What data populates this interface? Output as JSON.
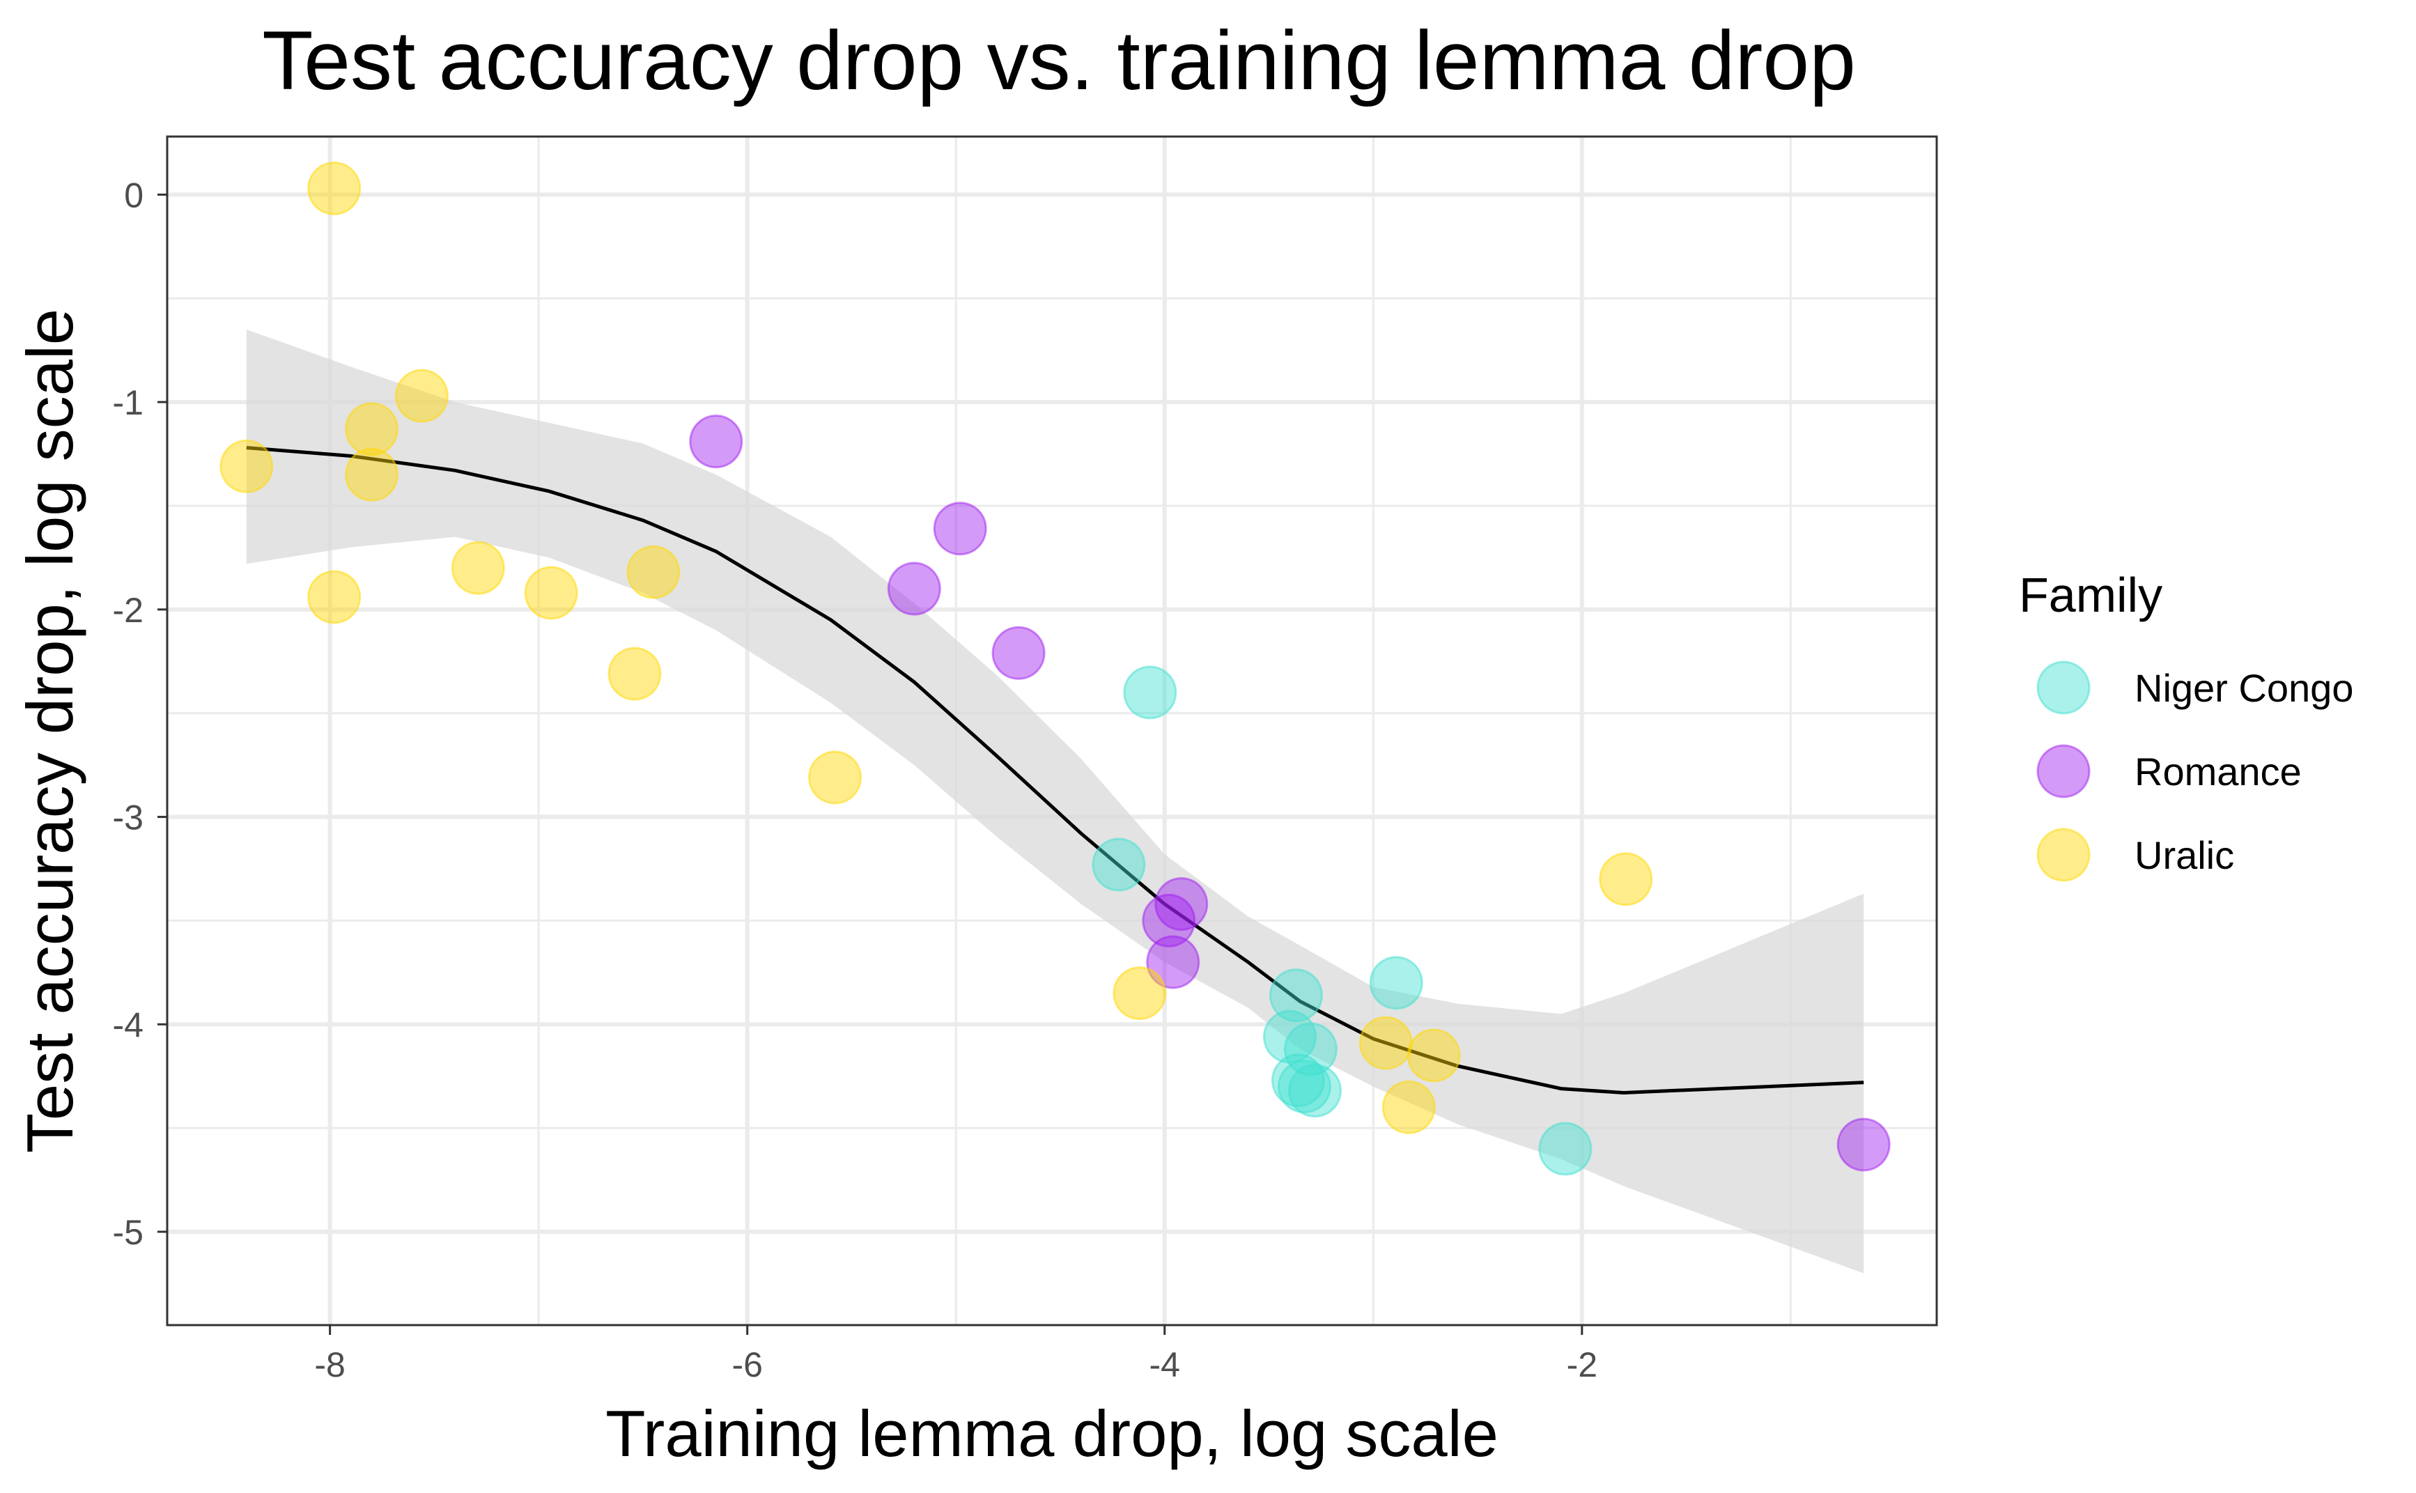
{
  "chart_data": {
    "type": "scatter",
    "title": "Test accuracy drop vs. training lemma drop",
    "xlabel": "Training lemma drop, log scale",
    "ylabel": "Test accuracy drop, log scale",
    "xlim": [
      -8.78,
      -0.3
    ],
    "ylim": [
      -5.45,
      0.28
    ],
    "x_ticks": [
      -8,
      -6,
      -4,
      -2
    ],
    "x_minor_ticks": [
      -7,
      -5,
      -3,
      -1
    ],
    "y_ticks": [
      0,
      -1,
      -2,
      -3,
      -4,
      -5
    ],
    "y_minor_ticks": [
      -0.5,
      -1.5,
      -2.5,
      -3.5,
      -4.5
    ],
    "grid": true,
    "legend": {
      "title": "Family",
      "position": "right",
      "entries": [
        {
          "name": "Niger Congo",
          "color": "#40E0D0"
        },
        {
          "name": "Romance",
          "color": "#A020F0"
        },
        {
          "name": "Uralic",
          "color": "#FFD700"
        }
      ]
    },
    "point_alpha": 0.45,
    "series": [
      {
        "name": "Niger Congo",
        "color": "#40E0D0",
        "points": [
          {
            "x": -4.07,
            "y": -2.4
          },
          {
            "x": -4.22,
            "y": -3.23
          },
          {
            "x": -3.37,
            "y": -3.86
          },
          {
            "x": -2.89,
            "y": -3.8
          },
          {
            "x": -3.4,
            "y": -4.06
          },
          {
            "x": -3.3,
            "y": -4.12
          },
          {
            "x": -3.36,
            "y": -4.27
          },
          {
            "x": -3.33,
            "y": -4.3
          },
          {
            "x": -3.28,
            "y": -4.32
          },
          {
            "x": -2.08,
            "y": -4.6
          }
        ]
      },
      {
        "name": "Romance",
        "color": "#A020F0",
        "points": [
          {
            "x": -6.15,
            "y": -1.19
          },
          {
            "x": -4.98,
            "y": -1.61
          },
          {
            "x": -5.2,
            "y": -1.9
          },
          {
            "x": -4.7,
            "y": -2.21
          },
          {
            "x": -3.92,
            "y": -3.42
          },
          {
            "x": -3.98,
            "y": -3.5
          },
          {
            "x": -3.96,
            "y": -3.7
          },
          {
            "x": -0.65,
            "y": -4.58
          }
        ]
      },
      {
        "name": "Uralic",
        "color": "#FFD700",
        "points": [
          {
            "x": -7.98,
            "y": 0.03
          },
          {
            "x": -7.56,
            "y": -0.97
          },
          {
            "x": -7.8,
            "y": -1.13
          },
          {
            "x": -8.4,
            "y": -1.31
          },
          {
            "x": -7.8,
            "y": -1.35
          },
          {
            "x": -7.98,
            "y": -1.94
          },
          {
            "x": -7.29,
            "y": -1.8
          },
          {
            "x": -6.94,
            "y": -1.92
          },
          {
            "x": -6.45,
            "y": -1.82
          },
          {
            "x": -6.54,
            "y": -2.31
          },
          {
            "x": -5.58,
            "y": -2.81
          },
          {
            "x": -4.12,
            "y": -3.85
          },
          {
            "x": -1.79,
            "y": -3.3
          },
          {
            "x": -2.94,
            "y": -4.09
          },
          {
            "x": -2.71,
            "y": -4.15
          },
          {
            "x": -2.83,
            "y": -4.4
          }
        ]
      }
    ],
    "smooth": {
      "color": "#000000",
      "band_color": "#D9D9D9",
      "fit": [
        {
          "x": -8.4,
          "y": -1.22
        },
        {
          "x": -7.9,
          "y": -1.26
        },
        {
          "x": -7.4,
          "y": -1.33
        },
        {
          "x": -6.95,
          "y": -1.43
        },
        {
          "x": -6.5,
          "y": -1.57
        },
        {
          "x": -6.15,
          "y": -1.72
        },
        {
          "x": -5.6,
          "y": -2.05
        },
        {
          "x": -5.2,
          "y": -2.35
        },
        {
          "x": -4.8,
          "y": -2.71
        },
        {
          "x": -4.4,
          "y": -3.08
        },
        {
          "x": -4.0,
          "y": -3.42
        },
        {
          "x": -3.6,
          "y": -3.7
        },
        {
          "x": -3.35,
          "y": -3.89
        },
        {
          "x": -3.0,
          "y": -4.07
        },
        {
          "x": -2.6,
          "y": -4.2
        },
        {
          "x": -2.1,
          "y": -4.31
        },
        {
          "x": -1.8,
          "y": -4.33
        },
        {
          "x": -0.65,
          "y": -4.28
        }
      ],
      "band_upper": [
        {
          "x": -8.4,
          "y": -0.65
        },
        {
          "x": -7.9,
          "y": -0.83
        },
        {
          "x": -7.4,
          "y": -1.0
        },
        {
          "x": -6.95,
          "y": -1.1
        },
        {
          "x": -6.5,
          "y": -1.2
        },
        {
          "x": -6.15,
          "y": -1.35
        },
        {
          "x": -5.6,
          "y": -1.65
        },
        {
          "x": -5.2,
          "y": -1.97
        },
        {
          "x": -4.8,
          "y": -2.32
        },
        {
          "x": -4.4,
          "y": -2.72
        },
        {
          "x": -4.0,
          "y": -3.18
        },
        {
          "x": -3.6,
          "y": -3.48
        },
        {
          "x": -3.35,
          "y": -3.62
        },
        {
          "x": -3.0,
          "y": -3.82
        },
        {
          "x": -2.6,
          "y": -3.9
        },
        {
          "x": -2.1,
          "y": -3.95
        },
        {
          "x": -1.8,
          "y": -3.85
        },
        {
          "x": -0.65,
          "y": -3.37
        }
      ],
      "band_lower": [
        {
          "x": -8.4,
          "y": -1.78
        },
        {
          "x": -7.9,
          "y": -1.7
        },
        {
          "x": -7.4,
          "y": -1.65
        },
        {
          "x": -6.95,
          "y": -1.75
        },
        {
          "x": -6.5,
          "y": -1.92
        },
        {
          "x": -6.15,
          "y": -2.1
        },
        {
          "x": -5.6,
          "y": -2.45
        },
        {
          "x": -5.2,
          "y": -2.75
        },
        {
          "x": -4.8,
          "y": -3.1
        },
        {
          "x": -4.4,
          "y": -3.42
        },
        {
          "x": -4.0,
          "y": -3.7
        },
        {
          "x": -3.6,
          "y": -3.92
        },
        {
          "x": -3.35,
          "y": -4.12
        },
        {
          "x": -3.0,
          "y": -4.3
        },
        {
          "x": -2.6,
          "y": -4.48
        },
        {
          "x": -2.1,
          "y": -4.65
        },
        {
          "x": -1.8,
          "y": -4.78
        },
        {
          "x": -0.65,
          "y": -5.2
        }
      ]
    }
  }
}
